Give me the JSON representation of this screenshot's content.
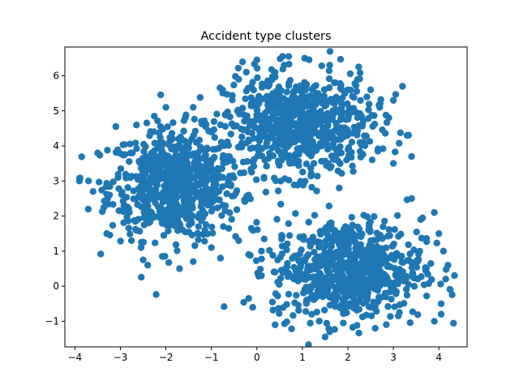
{
  "chart_data": {
    "type": "scatter",
    "title": "Accident type clusters",
    "xlabel": "",
    "ylabel": "",
    "xlim": [
      -4.22,
      4.62
    ],
    "ylim": [
      -1.73,
      6.82
    ],
    "xticks": [
      -4,
      -3,
      -2,
      -1,
      0,
      1,
      2,
      3,
      4
    ],
    "yticks": [
      -1,
      0,
      1,
      2,
      3,
      4,
      5,
      6
    ],
    "grid": false,
    "legend": "none",
    "marker_color": "#1f77b4",
    "clusters": [
      {
        "center": [
          -1.8,
          2.9
        ],
        "spread": [
          0.72,
          0.78
        ]
      },
      {
        "center": [
          0.9,
          4.6
        ],
        "spread": [
          0.82,
          0.72
        ]
      },
      {
        "center": [
          2.0,
          0.5
        ],
        "spread": [
          0.82,
          0.72
        ]
      }
    ],
    "outlier_points": [
      {
        "x": -3.9,
        "y": 3.0
      },
      {
        "x": -3.7,
        "y": 3.0
      },
      {
        "x": -3.6,
        "y": 2.7
      },
      {
        "x": -3.5,
        "y": 3.8
      },
      {
        "x": -3.3,
        "y": 1.5
      },
      {
        "x": -3.1,
        "y": 4.55
      },
      {
        "x": -2.5,
        "y": 0.75
      },
      {
        "x": -2.4,
        "y": 0.6
      },
      {
        "x": -2.0,
        "y": 5.1
      },
      {
        "x": -1.7,
        "y": 0.5
      },
      {
        "x": -1.4,
        "y": 5.1
      },
      {
        "x": -1.4,
        "y": 0.7
      },
      {
        "x": -1.0,
        "y": 1.1
      },
      {
        "x": -0.8,
        "y": 0.8
      },
      {
        "x": -0.4,
        "y": 1.3
      },
      {
        "x": -0.4,
        "y": 5.9
      },
      {
        "x": 0.0,
        "y": 6.45
      },
      {
        "x": 0.4,
        "y": 6.1
      },
      {
        "x": 0.6,
        "y": 6.3
      },
      {
        "x": 0.7,
        "y": 6.55
      },
      {
        "x": 1.05,
        "y": 6.5
      },
      {
        "x": 1.6,
        "y": 6.3
      },
      {
        "x": 2.0,
        "y": 5.6
      },
      {
        "x": 2.5,
        "y": 5.6
      },
      {
        "x": 2.7,
        "y": 5.1
      },
      {
        "x": 2.9,
        "y": 4.8
      },
      {
        "x": 3.0,
        "y": 5.3
      },
      {
        "x": 3.0,
        "y": 3.5
      },
      {
        "x": 3.2,
        "y": 5.7
      },
      {
        "x": 3.3,
        "y": 4.3
      },
      {
        "x": 3.4,
        "y": 3.7
      },
      {
        "x": 3.4,
        "y": 2.5
      },
      {
        "x": 3.6,
        "y": 1.9
      },
      {
        "x": 3.9,
        "y": 2.1
      },
      {
        "x": 4.0,
        "y": 1.5
      },
      {
        "x": 4.1,
        "y": 1.0
      },
      {
        "x": 4.2,
        "y": 0.6
      },
      {
        "x": 4.25,
        "y": -0.1
      },
      {
        "x": 4.05,
        "y": -0.5
      },
      {
        "x": 4.05,
        "y": -0.8
      },
      {
        "x": 3.9,
        "y": -1.0
      },
      {
        "x": 1.6,
        "y": -1.3
      },
      {
        "x": 0.4,
        "y": -1.1
      },
      {
        "x": 0.4,
        "y": 0.4
      },
      {
        "x": 0.1,
        "y": 0.3
      },
      {
        "x": 2.6,
        "y": -1.2
      },
      {
        "x": 1.9,
        "y": -1.05
      },
      {
        "x": -0.8,
        "y": 4.6
      },
      {
        "x": 0.1,
        "y": 1.0
      }
    ]
  }
}
